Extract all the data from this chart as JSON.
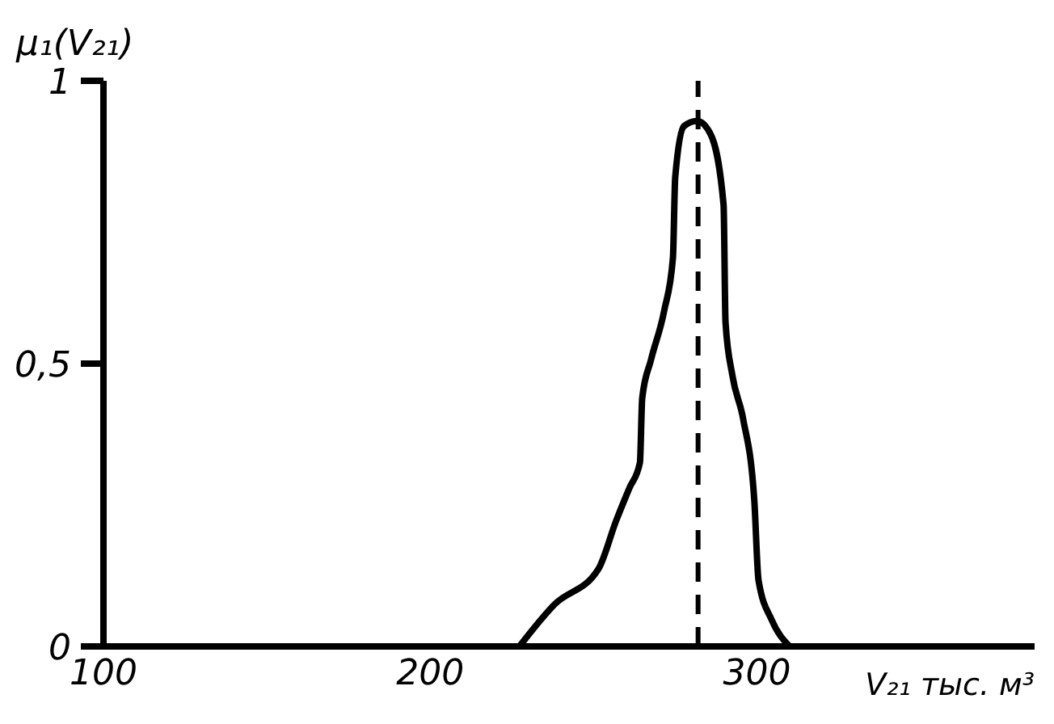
{
  "chart_data": {
    "type": "line",
    "xlabel": "V₂₁ тыс. м³",
    "ylabel": "μ₁(V₂₁)",
    "xlim": [
      100,
      385
    ],
    "xticks": [
      100,
      200,
      300
    ],
    "ylim": [
      0,
      1
    ],
    "yticks": [
      0,
      {
        "value": 0.5,
        "label": "0,5"
      },
      1
    ],
    "grid": false,
    "marker": "none",
    "line_style": "solid",
    "series": [
      {
        "color": "#000000",
        "x": [
          227.3,
          238,
          251.5,
          256.9,
          260.9,
          264.2,
          264.9,
          267.6,
          271.6,
          274.3,
          275,
          277.7,
          281.7,
          285.8,
          289.8,
          290.4,
          292.5,
          295.8,
          299.2,
          300.5,
          304.6,
          310
        ],
        "values": [
          0,
          0.074,
          0.137,
          0.222,
          0.279,
          0.325,
          0.439,
          0.507,
          0.593,
          0.687,
          0.829,
          0.92,
          0.929,
          0.906,
          0.781,
          0.573,
          0.479,
          0.402,
          0.259,
          0.117,
          0.046,
          0
        ]
      }
    ],
    "ref_lines": [
      {
        "axis": "x",
        "value": 282,
        "color": "#000000",
        "line_style": "dashed"
      }
    ]
  }
}
